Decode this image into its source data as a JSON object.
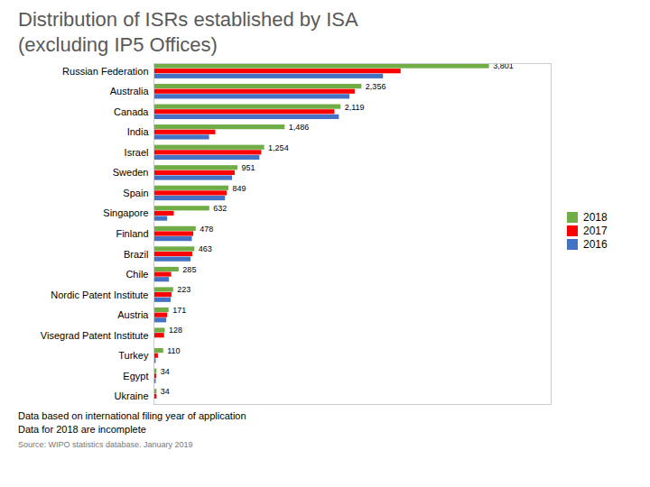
{
  "chart_data": {
    "type": "bar",
    "orientation": "horizontal",
    "title": "Distribution of ISRs established by ISA",
    "subtitle": "(excluding IP5 Offices)",
    "categories": [
      "Russian Federation",
      "Australia",
      "Canada",
      "India",
      "Israel",
      "Sweden",
      "Spain",
      "Singapore",
      "Finland",
      "Brazil",
      "Chile",
      "Nordic Patent Institute",
      "Austria",
      "Visegrad Patent Institute",
      "Turkey",
      "Egypt",
      "Ukraine"
    ],
    "series": [
      {
        "name": "2018",
        "color": "#70AD47",
        "values": [
          3801,
          2356,
          2119,
          1486,
          1254,
          951,
          849,
          632,
          478,
          463,
          285,
          223,
          171,
          128,
          110,
          34,
          34
        ],
        "data_labels": true,
        "value_labels": [
          "3,801",
          "2,356",
          "2,119",
          "1,486",
          "1,254",
          "951",
          "849",
          "632",
          "478",
          "463",
          "285",
          "223",
          "171",
          "128",
          "110",
          "34",
          "34"
        ]
      },
      {
        "name": "2017",
        "color": "#FF0000",
        "values": [
          2800,
          2280,
          2050,
          700,
          1220,
          920,
          830,
          230,
          450,
          440,
          200,
          205,
          155,
          120,
          50,
          30,
          34
        ]
      },
      {
        "name": "2016",
        "color": "#4472C4",
        "values": [
          2600,
          2220,
          2100,
          630,
          1200,
          890,
          810,
          155,
          435,
          420,
          175,
          195,
          145,
          5,
          25,
          25,
          10
        ]
      }
    ],
    "xlim": [
      0,
      4500
    ],
    "tick_labels": "y",
    "grid": false,
    "legend": "right",
    "annotations": [
      "Data based on international filing year of application",
      "Data for 2018 are incomplete"
    ],
    "source": "Source: WIPO statistics database.  January 2019"
  }
}
